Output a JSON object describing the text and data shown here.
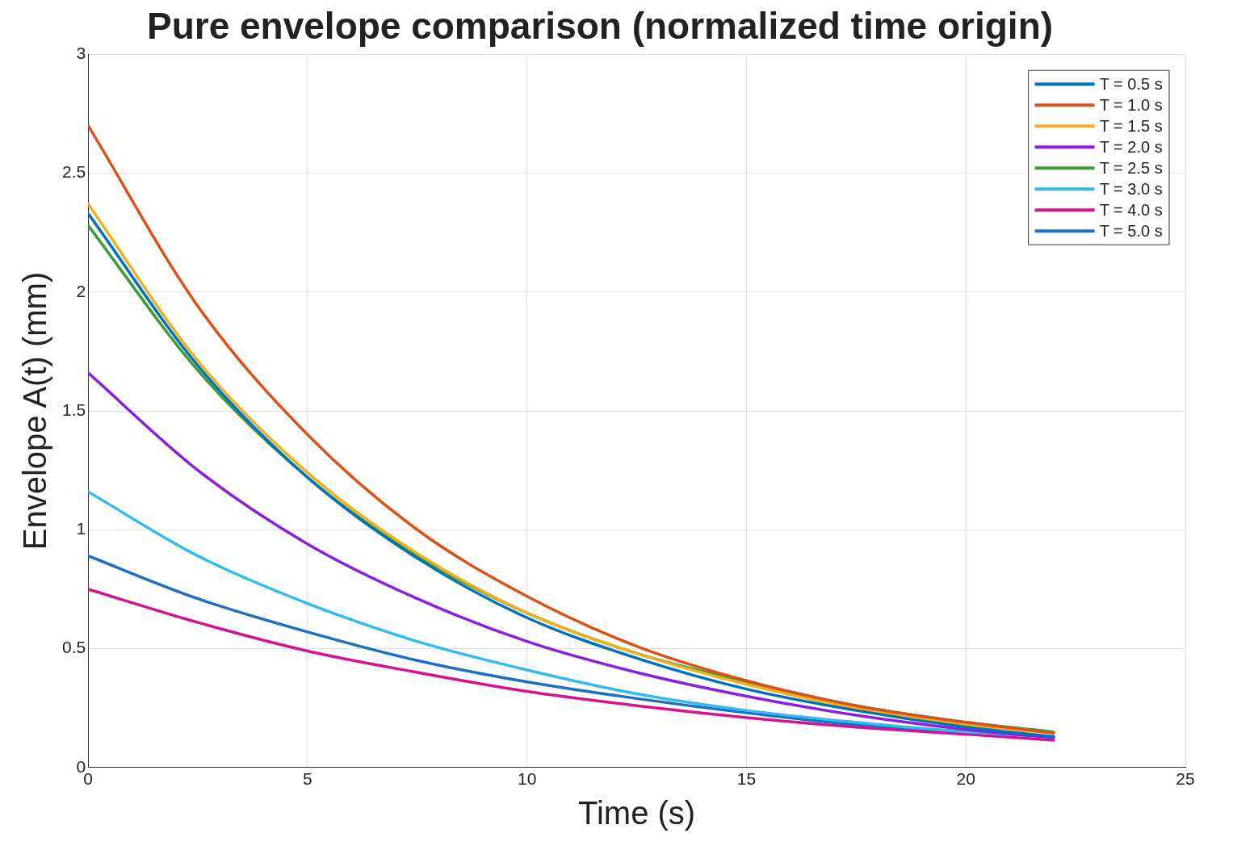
{
  "chart_data": {
    "type": "line",
    "title": "Pure envelope comparison (normalized time origin)",
    "xlabel": "Time (s)",
    "ylabel": "Envelope A(t) (mm)",
    "x": [
      0,
      2.5,
      5,
      7.5,
      10,
      12.5,
      15,
      17.5,
      20,
      22
    ],
    "xlim": [
      0,
      25
    ],
    "xticks": [
      0,
      5,
      10,
      15,
      20,
      25
    ],
    "ylim": [
      0,
      3
    ],
    "yticks": [
      0,
      0.5,
      1,
      1.5,
      2,
      2.5,
      3
    ],
    "grid": true,
    "legend": "top right",
    "marker": "none",
    "line_style": "solid",
    "series": [
      {
        "name": "T = 0.5 s",
        "color": "#0072bd",
        "values": [
          2.33,
          1.69,
          1.22,
          0.88,
          0.63,
          0.46,
          0.33,
          0.24,
          0.17,
          0.13
        ]
      },
      {
        "name": "T = 1.0 s",
        "color": "#d95319",
        "values": [
          2.7,
          1.94,
          1.4,
          1.0,
          0.72,
          0.51,
          0.365,
          0.26,
          0.19,
          0.145
        ]
      },
      {
        "name": "T = 1.5 s",
        "color": "#edb120",
        "values": [
          2.37,
          1.71,
          1.24,
          0.9,
          0.65,
          0.48,
          0.35,
          0.25,
          0.18,
          0.145
        ]
      },
      {
        "name": "T = 2.0 s",
        "color": "#8b1fe0",
        "values": [
          1.66,
          1.25,
          0.94,
          0.71,
          0.53,
          0.4,
          0.3,
          0.22,
          0.16,
          0.125
        ]
      },
      {
        "name": "T = 2.5 s",
        "color": "#3a9e35",
        "values": [
          2.28,
          1.67,
          1.22,
          0.89,
          0.65,
          0.48,
          0.36,
          0.26,
          0.19,
          0.15
        ]
      },
      {
        "name": "T = 3.0 s",
        "color": "#33bbf0",
        "values": [
          1.16,
          0.89,
          0.69,
          0.53,
          0.41,
          0.31,
          0.24,
          0.19,
          0.15,
          0.13
        ]
      },
      {
        "name": "T = 4.0 s",
        "color": "#d6128f",
        "values": [
          0.75,
          0.61,
          0.49,
          0.4,
          0.32,
          0.26,
          0.21,
          0.17,
          0.14,
          0.115
        ]
      },
      {
        "name": "T = 5.0 s",
        "color": "#1b6fc4",
        "values": [
          0.89,
          0.71,
          0.57,
          0.45,
          0.36,
          0.29,
          0.23,
          0.18,
          0.15,
          0.13
        ]
      }
    ]
  }
}
